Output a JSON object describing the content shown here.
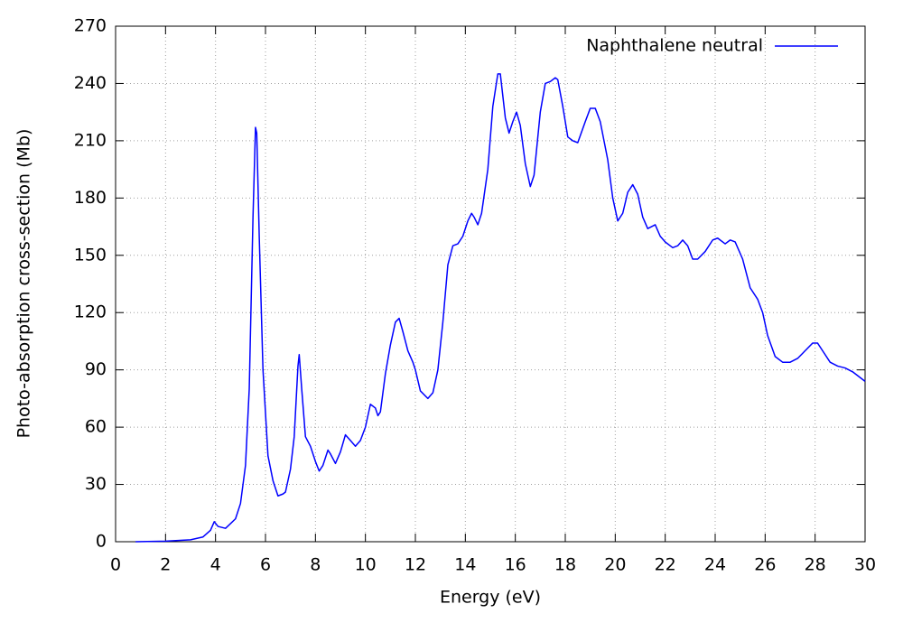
{
  "chart_data": {
    "type": "line",
    "xlabel": "Energy (eV)",
    "ylabel": "Photo-absorption cross-section (Mb)",
    "x": [
      0.8,
      2,
      3,
      3.5,
      3.8,
      3.95,
      4.1,
      4.4,
      4.6,
      4.8,
      5.0,
      5.2,
      5.35,
      5.5,
      5.6,
      5.65,
      5.75,
      5.9,
      6.1,
      6.3,
      6.5,
      6.7,
      6.8,
      7.0,
      7.15,
      7.3,
      7.35,
      7.45,
      7.6,
      7.8,
      8.0,
      8.15,
      8.3,
      8.5,
      8.6,
      8.8,
      9.0,
      9.2,
      9.4,
      9.6,
      9.8,
      10.0,
      10.2,
      10.4,
      10.5,
      10.6,
      10.8,
      11.0,
      11.2,
      11.35,
      11.5,
      11.7,
      11.9,
      12.0,
      12.2,
      12.5,
      12.7,
      12.9,
      13.1,
      13.3,
      13.5,
      13.7,
      13.9,
      14.1,
      14.25,
      14.35,
      14.5,
      14.65,
      14.9,
      15.1,
      15.3,
      15.4,
      15.6,
      15.75,
      15.9,
      16.05,
      16.2,
      16.4,
      16.6,
      16.75,
      17.0,
      17.2,
      17.4,
      17.6,
      17.7,
      17.9,
      18.1,
      18.3,
      18.5,
      18.8,
      19.0,
      19.2,
      19.4,
      19.7,
      19.9,
      20.1,
      20.3,
      20.5,
      20.7,
      20.9,
      21.1,
      21.3,
      21.6,
      21.8,
      22.0,
      22.3,
      22.5,
      22.7,
      22.9,
      23.1,
      23.3,
      23.6,
      23.9,
      24.1,
      24.4,
      24.6,
      24.8,
      25.1,
      25.4,
      25.7,
      25.9,
      26.1,
      26.4,
      26.7,
      27.0,
      27.3,
      27.6,
      27.9,
      28.1,
      28.3,
      28.6,
      28.9,
      29.2,
      29.5,
      29.8,
      30
    ],
    "series": [
      {
        "name": "Naphthalene neutral",
        "color": "#0000ff",
        "values": [
          0,
          0.3,
          1,
          2.5,
          6,
          10.5,
          8,
          7,
          9.5,
          12,
          20,
          40,
          80,
          170,
          217,
          214,
          160,
          90,
          45,
          32,
          24,
          25,
          26,
          38,
          55,
          92,
          98,
          80,
          55,
          50,
          42,
          37,
          40,
          48,
          46,
          41,
          47,
          56,
          53,
          50,
          53,
          60,
          72,
          70,
          66,
          68,
          88,
          103,
          115,
          117,
          110,
          100,
          94,
          90,
          79,
          75,
          78,
          90,
          115,
          145,
          155,
          156,
          160,
          168,
          172,
          170,
          166,
          172,
          195,
          228,
          245,
          245,
          222,
          214,
          220,
          225,
          218,
          198,
          186,
          192,
          225,
          240,
          241,
          243,
          242,
          228,
          212,
          210,
          209,
          220,
          227,
          227,
          220,
          200,
          180,
          168,
          172,
          183,
          187,
          182,
          170,
          164,
          166,
          160,
          157,
          154,
          155,
          158,
          155,
          148,
          148,
          152,
          158,
          159,
          156,
          158,
          157,
          148,
          133,
          127,
          120,
          108,
          97,
          94,
          94,
          96,
          100,
          104,
          104,
          100,
          94,
          92,
          91,
          89,
          86,
          84
        ]
      }
    ],
    "xlim": [
      0,
      30
    ],
    "ylim": [
      0,
      270
    ],
    "xticks": [
      0,
      2,
      4,
      6,
      8,
      10,
      12,
      14,
      16,
      18,
      20,
      22,
      24,
      26,
      28,
      30
    ],
    "yticks": [
      0,
      30,
      60,
      90,
      120,
      150,
      180,
      210,
      240,
      270
    ],
    "grid": true,
    "legend": "upper right"
  }
}
